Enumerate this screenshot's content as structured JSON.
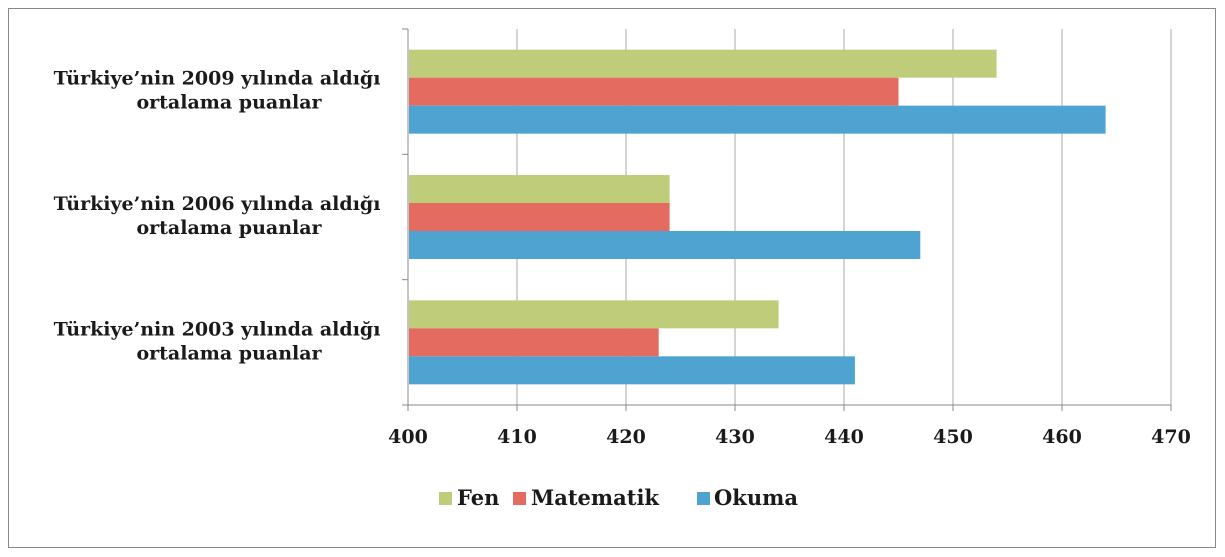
{
  "chart_data": {
    "type": "bar",
    "orientation": "horizontal",
    "categories": [
      [
        "Türkiye’nin 2003 yılında  aldığı",
        "ortalama puanlar"
      ],
      [
        "Türkiye’nin 2006 yılında  aldığı",
        "ortalama puanlar"
      ],
      [
        "Türkiye’nin 2009 yılında  aldığı",
        "ortalama puanlar"
      ]
    ],
    "series": [
      {
        "name": "Okuma",
        "color": "#4ea3d1",
        "values": [
          441,
          447,
          464
        ]
      },
      {
        "name": "Matematik",
        "color": "#e46b5f",
        "values": [
          423,
          424,
          445
        ]
      },
      {
        "name": "Fen",
        "color": "#bfcd7b",
        "values": [
          434,
          424,
          454
        ]
      }
    ],
    "xlim": [
      400,
      470
    ],
    "xticks": [
      400,
      410,
      420,
      430,
      440,
      450,
      460,
      470
    ],
    "grid": "vertical",
    "legend": {
      "position": "bottom",
      "order": [
        "Fen",
        "Matematik",
        "Okuma"
      ]
    },
    "colors": {
      "grid": "#aaaaaa",
      "axis": "#888888"
    }
  }
}
